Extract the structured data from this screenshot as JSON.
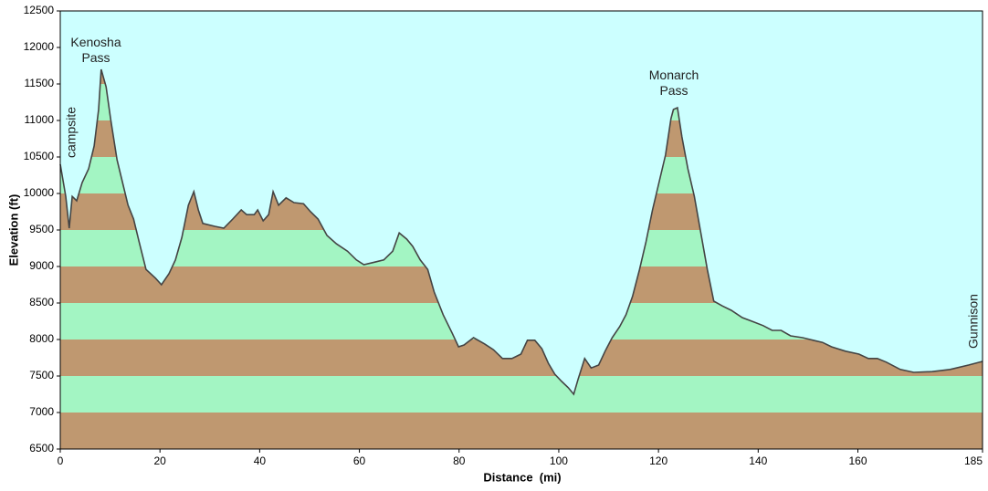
{
  "chart_data": {
    "type": "area",
    "xlabel": "Distance  (mi)",
    "ylabel": "Elevation (ft)",
    "xlim": [
      0,
      185
    ],
    "ylim": [
      6500,
      12500
    ],
    "xticks": [
      0,
      20,
      40,
      60,
      80,
      100,
      120,
      140,
      160,
      185
    ],
    "yticks": [
      6500,
      7000,
      7500,
      8000,
      8500,
      9000,
      9500,
      10000,
      10500,
      11000,
      11500,
      12000,
      12500
    ],
    "band_colors": [
      "#bf9870",
      "#a3f5c3"
    ],
    "sky_color": "#ccffff",
    "line_color": "#444444",
    "annotations": [
      {
        "text": "Kenosha Pass"
      },
      {
        "text": "Monarch Pass"
      },
      {
        "text": "campsite"
      },
      {
        "text": "Gunnison"
      }
    ],
    "x": [
      0,
      1.1,
      1.8,
      2.4,
      3.3,
      4.4,
      5.7,
      6.8,
      7.7,
      8.2,
      9.2,
      10.1,
      11.4,
      12.5,
      13.6,
      14.7,
      15.8,
      17.2,
      19.1,
      20.3,
      21.8,
      23.1,
      24.4,
      25.7,
      26.8,
      27.7,
      28.6,
      31,
      32.8,
      34.6,
      36.3,
      37.4,
      38.9,
      39.6,
      40.7,
      41.8,
      42.7,
      43.8,
      45.3,
      46.9,
      48.8,
      50.2,
      51.7,
      53.5,
      55.4,
      57.6,
      59.4,
      60.9,
      63.1,
      64.9,
      66.7,
      68,
      69.5,
      70.7,
      72.2,
      73.7,
      75,
      76.8,
      78.6,
      79.9,
      81,
      82.9,
      85.1,
      86.9,
      88.7,
      90.6,
      92.4,
      93.7,
      95.2,
      96.6,
      97.9,
      99.2,
      100.6,
      101.9,
      103,
      103.9,
      105.2,
      106.5,
      108,
      109.3,
      110.7,
      112.2,
      113.5,
      114.8,
      116.2,
      117.5,
      118.8,
      120.1,
      121.4,
      122.5,
      123,
      123.8,
      124.7,
      125.9,
      127.2,
      128.5,
      129.8,
      131.1,
      132.8,
      134.6,
      136.8,
      139.1,
      141,
      142.8,
      144.6,
      146.5,
      148.9,
      151,
      152.9,
      154.7,
      157.5,
      160.2,
      162.1,
      163.9,
      165.7,
      168.5,
      171.2,
      174.9,
      178.5,
      182.2,
      185
    ],
    "values": [
      10400,
      9960,
      9525,
      9960,
      9900,
      10150,
      10340,
      10650,
      11150,
      11700,
      11460,
      11025,
      10460,
      10150,
      9840,
      9650,
      9340,
      8960,
      8840,
      8750,
      8900,
      9090,
      9400,
      9840,
      10025,
      9775,
      9590,
      9550,
      9525,
      9650,
      9775,
      9710,
      9710,
      9775,
      9625,
      9710,
      10025,
      9840,
      9940,
      9875,
      9860,
      9750,
      9650,
      9425,
      9310,
      9210,
      9090,
      9025,
      9060,
      9090,
      9210,
      9460,
      9375,
      9275,
      9090,
      8960,
      8650,
      8340,
      8090,
      7900,
      7925,
      8025,
      7940,
      7860,
      7740,
      7740,
      7800,
      7990,
      7990,
      7875,
      7675,
      7525,
      7425,
      7340,
      7250,
      7460,
      7740,
      7610,
      7650,
      7840,
      8025,
      8175,
      8340,
      8590,
      8960,
      9340,
      9775,
      10150,
      10525,
      11025,
      11150,
      11175,
      10775,
      10340,
      9960,
      9460,
      8960,
      8525,
      8460,
      8400,
      8300,
      8240,
      8190,
      8125,
      8125,
      8050,
      8025,
      7990,
      7960,
      7900,
      7840,
      7800,
      7740,
      7740,
      7690,
      7590,
      7550,
      7560,
      7590,
      7650,
      7700
    ]
  }
}
